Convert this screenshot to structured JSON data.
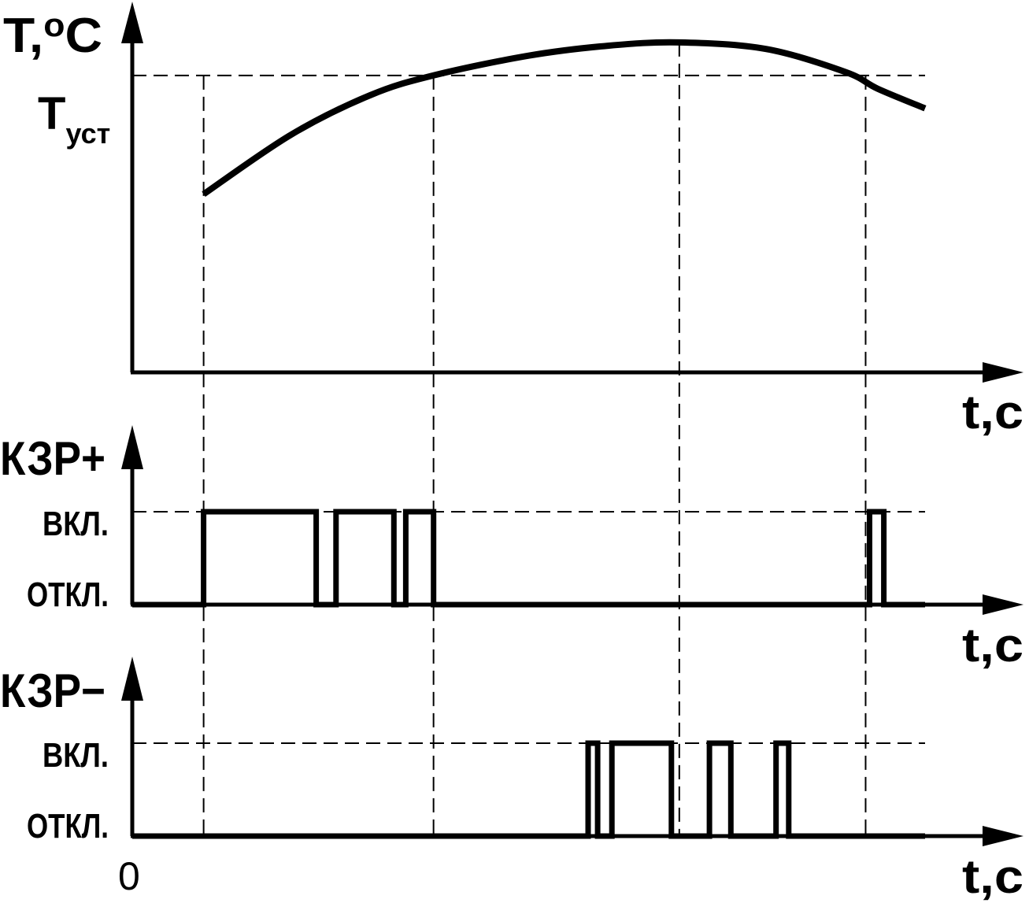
{
  "chart_data": [
    {
      "type": "line",
      "ylabel_main": "T,",
      "ylabel_sup": "o",
      "ylabel_unit": "C",
      "xlabel": "t,c",
      "setpoint_main": "T",
      "setpoint_sub": "уст",
      "setpoint_value": 0.9,
      "ylim": [
        0,
        1.1
      ],
      "xlim": [
        0,
        1.0
      ],
      "series": [
        {
          "x": [
            0.09,
            0.2,
            0.3,
            0.38,
            0.5,
            0.6,
            0.69,
            0.8,
            0.9,
            0.94,
            1.0
          ],
          "y": [
            0.54,
            0.72,
            0.84,
            0.9,
            0.96,
            0.99,
            1.0,
            0.98,
            0.91,
            0.86,
            0.8
          ]
        }
      ],
      "reference_times": [
        0.09,
        0.38,
        0.69,
        0.925
      ]
    },
    {
      "type": "line",
      "ylabel": "КЗР+",
      "xlabel": "t,c",
      "levels": [
        "ОТКЛ.",
        "ВКЛ."
      ],
      "step": [
        [
          0,
          0
        ],
        [
          0.09,
          1
        ],
        [
          0.232,
          0
        ],
        [
          0.257,
          1
        ],
        [
          0.33,
          0
        ],
        [
          0.345,
          1
        ],
        [
          0.38,
          0
        ],
        [
          0.93,
          1
        ],
        [
          0.948,
          0
        ],
        [
          1.0,
          0
        ]
      ]
    },
    {
      "type": "line",
      "ylabel": "КЗР−",
      "xlabel": "t,c",
      "origin_label": "0",
      "levels": [
        "ОТКЛ.",
        "ВКЛ."
      ],
      "step": [
        [
          0,
          0
        ],
        [
          0.575,
          1
        ],
        [
          0.587,
          0
        ],
        [
          0.605,
          1
        ],
        [
          0.68,
          0
        ],
        [
          0.728,
          1
        ],
        [
          0.755,
          0
        ],
        [
          0.812,
          1
        ],
        [
          0.828,
          0
        ],
        [
          1.0,
          0
        ]
      ]
    }
  ]
}
